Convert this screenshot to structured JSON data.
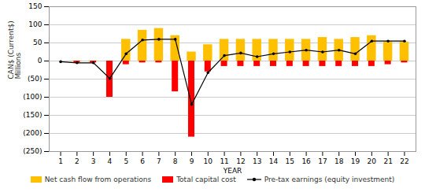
{
  "chart_data": {
    "type": "bar",
    "x": [
      1,
      2,
      3,
      4,
      5,
      6,
      7,
      8,
      9,
      10,
      11,
      12,
      13,
      14,
      15,
      16,
      17,
      18,
      19,
      20,
      21,
      22
    ],
    "xlabel": "YEAR",
    "ylabel": "CAN$ (Current$)\nMillions",
    "xlim": [
      0.3,
      22.7
    ],
    "xticks": [
      1,
      2,
      3,
      4,
      5,
      6,
      7,
      8,
      9,
      10,
      11,
      12,
      13,
      14,
      15,
      16,
      17,
      18,
      19,
      20,
      21,
      22
    ],
    "ylim": [
      -250,
      150
    ],
    "yticks": [
      150,
      100,
      50,
      0,
      {
        "value": -50,
        "label": "(50)"
      },
      {
        "value": -100,
        "label": "(100)"
      },
      {
        "value": -150,
        "label": "(150)"
      },
      {
        "value": -200,
        "label": "(200)"
      },
      {
        "value": -250,
        "label": "(250)"
      }
    ],
    "grid": true,
    "legend": "bottom",
    "series": [
      {
        "name": "Net cash flow from operations",
        "type": "bar",
        "color": "#FFC000",
        "values": [
          0,
          -2,
          -2,
          0,
          60,
          85,
          90,
          70,
          25,
          45,
          60,
          60,
          60,
          60,
          60,
          60,
          65,
          60,
          65,
          70,
          52,
          52
        ]
      },
      {
        "name": "Total capital cost",
        "type": "bar",
        "color": "#FF0000",
        "values": [
          0,
          -5,
          -5,
          -100,
          -10,
          -5,
          -5,
          -85,
          -210,
          -30,
          -15,
          -15,
          -15,
          -15,
          -15,
          -15,
          -15,
          -15,
          -15,
          -15,
          -10,
          -5
        ]
      },
      {
        "name": "Pre-tax earnings (equity investment)",
        "type": "line",
        "color": "#000000",
        "marker": "circle",
        "values": [
          -2,
          -5,
          -5,
          -48,
          20,
          58,
          60,
          60,
          -120,
          -32,
          15,
          22,
          12,
          20,
          25,
          30,
          25,
          30,
          20,
          55,
          55,
          55
        ]
      }
    ]
  }
}
